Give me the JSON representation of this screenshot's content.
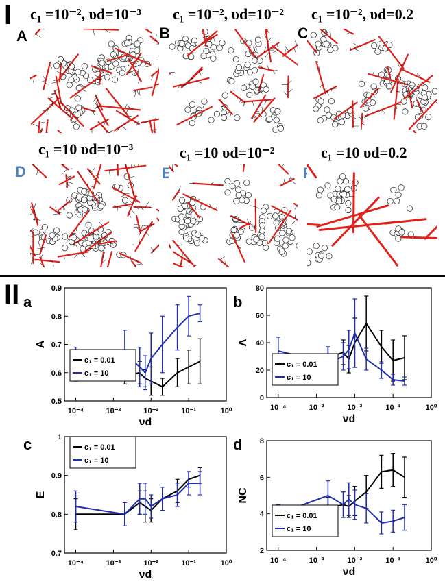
{
  "section_I": {
    "label": "I",
    "panels": [
      {
        "letter": "A",
        "header": "c₁ =10⁻², υd=10⁻³",
        "letter_color": "#000000"
      },
      {
        "letter": "B",
        "header": "c₁ =10⁻², υd=10⁻²",
        "letter_color": "#000000"
      },
      {
        "letter": "C",
        "header": "c₁ =10⁻², υd=0.2",
        "letter_color": "#000000"
      },
      {
        "letter": "D",
        "header": "c₁ =10 υd=10⁻³",
        "letter_color": "#4F81BD"
      },
      {
        "letter": "E",
        "header": "c₁ =10 υd=10⁻²",
        "letter_color": "#4F81BD"
      },
      {
        "letter": "F",
        "header": "c₁ =10 υd=0.2",
        "letter_color": "#4F81BD"
      }
    ]
  },
  "section_II": {
    "label": "II"
  },
  "colors": {
    "black_series": "#000000",
    "blue_series": "#1f2fb0",
    "filament_red": "#e0201a"
  },
  "chart_data": [
    {
      "panel": "a",
      "type": "line",
      "xscale": "log",
      "xlim": [
        5e-05,
        1
      ],
      "xticks": [
        "10⁻⁴",
        "10⁻³",
        "10⁻²",
        "10⁻¹",
        "10⁰"
      ],
      "xlabel": "νd",
      "ylabel": "A",
      "ylim": [
        0.5,
        0.9
      ],
      "yticks": [
        "0.5",
        "0.6",
        "0.7",
        "0.8",
        "0.9"
      ],
      "legend": "bottom-left",
      "series": [
        {
          "name": "c₁ = 0.01",
          "color": "black",
          "x": [
            0.0001,
            0.002,
            0.005,
            0.007,
            0.01,
            0.02,
            0.05,
            0.1,
            0.2
          ],
          "y": [
            0.59,
            0.59,
            0.6,
            0.58,
            0.57,
            0.55,
            0.6,
            0.62,
            0.64
          ],
          "err": [
            0.02,
            0.03,
            0.04,
            0.03,
            0.05,
            0.03,
            0.05,
            0.06,
            0.08
          ]
        },
        {
          "name": "c₁ = 10",
          "color": "blue",
          "x": [
            0.0001,
            0.002,
            0.005,
            0.007,
            0.01,
            0.02,
            0.05,
            0.1,
            0.2
          ],
          "y": [
            0.64,
            0.67,
            0.62,
            0.6,
            0.65,
            0.7,
            0.76,
            0.8,
            0.81
          ],
          "err": [
            0.05,
            0.08,
            0.07,
            0.06,
            0.09,
            0.1,
            0.08,
            0.07,
            0.03
          ]
        }
      ]
    },
    {
      "panel": "b",
      "type": "line",
      "xscale": "log",
      "xlim": [
        5e-05,
        1
      ],
      "xticks": [
        "10⁻⁴",
        "10⁻³",
        "10⁻²",
        "10⁻¹",
        "10⁰"
      ],
      "xlabel": "νd",
      "ylabel": "Λ",
      "ylim": [
        0,
        80
      ],
      "yticks": [
        "0",
        "20",
        "40",
        "60",
        "80"
      ],
      "legend": "bottom-left",
      "series": [
        {
          "name": "c₁ = 0.01",
          "color": "black",
          "x": [
            0.0001,
            0.002,
            0.005,
            0.007,
            0.01,
            0.02,
            0.05,
            0.1,
            0.2
          ],
          "y": [
            25,
            29,
            33,
            28,
            40,
            54,
            37,
            27,
            29
          ],
          "err": [
            5,
            8,
            9,
            10,
            18,
            20,
            12,
            15,
            16
          ]
        },
        {
          "name": "c₁ = 10",
          "color": "blue",
          "x": [
            0.0001,
            0.002,
            0.005,
            0.007,
            0.01,
            0.02,
            0.05,
            0.1,
            0.2
          ],
          "y": [
            34,
            25,
            30,
            35,
            47,
            28,
            20,
            13,
            12
          ],
          "err": [
            10,
            12,
            10,
            14,
            25,
            8,
            6,
            4,
            3
          ]
        }
      ]
    },
    {
      "panel": "c",
      "type": "line",
      "xscale": "log",
      "xlim": [
        5e-05,
        1
      ],
      "xticks": [
        "10⁻⁴",
        "10⁻³",
        "10⁻²",
        "10⁻¹",
        "10⁰"
      ],
      "xlabel": "νd",
      "ylabel": "E",
      "ylim": [
        0.7,
        1
      ],
      "yticks": [
        "0.7",
        "0.8",
        "0.9",
        "1"
      ],
      "legend": "top-left",
      "series": [
        {
          "name": "c₁ = 0.01",
          "color": "black",
          "x": [
            0.0001,
            0.002,
            0.005,
            0.007,
            0.01,
            0.02,
            0.05,
            0.1,
            0.2
          ],
          "y": [
            0.8,
            0.8,
            0.83,
            0.82,
            0.81,
            0.84,
            0.86,
            0.89,
            0.9
          ],
          "err": [
            0.04,
            0.03,
            0.03,
            0.04,
            0.03,
            0.03,
            0.03,
            0.02,
            0.02
          ]
        },
        {
          "name": "c₁ = 10",
          "color": "blue",
          "x": [
            0.0001,
            0.002,
            0.005,
            0.007,
            0.01,
            0.02,
            0.05,
            0.1,
            0.2
          ],
          "y": [
            0.82,
            0.8,
            0.84,
            0.84,
            0.82,
            0.84,
            0.85,
            0.88,
            0.88
          ],
          "err": [
            0.04,
            0.03,
            0.04,
            0.04,
            0.03,
            0.03,
            0.03,
            0.03,
            0.03
          ]
        }
      ]
    },
    {
      "panel": "d",
      "type": "line",
      "xscale": "log",
      "xlim": [
        5e-05,
        1
      ],
      "xticks": [
        "10⁻⁴",
        "10⁻³",
        "10⁻²",
        "10⁻¹",
        "10⁰"
      ],
      "xlabel": "νd",
      "ylabel": "NC",
      "ylim": [
        2,
        8
      ],
      "yticks": [
        "2",
        "4",
        "6",
        "8"
      ],
      "legend": "bottom-left",
      "series": [
        {
          "name": "c₁ = 0.01",
          "color": "black",
          "x": [
            0.0001,
            0.002,
            0.005,
            0.007,
            0.01,
            0.02,
            0.05,
            0.1,
            0.2
          ],
          "y": [
            4.0,
            4.3,
            4.5,
            4.4,
            4.7,
            5.2,
            6.3,
            6.4,
            6.0
          ],
          "err": [
            0.3,
            0.6,
            0.7,
            0.6,
            0.8,
            0.9,
            0.9,
            0.9,
            1.1
          ]
        },
        {
          "name": "c₁ = 10",
          "color": "blue",
          "x": [
            0.0001,
            0.002,
            0.005,
            0.007,
            0.01,
            0.02,
            0.05,
            0.1,
            0.2
          ],
          "y": [
            4.0,
            5.0,
            4.5,
            4.8,
            4.5,
            4.3,
            3.5,
            3.6,
            3.8
          ],
          "err": [
            0.5,
            0.8,
            0.7,
            0.9,
            0.8,
            0.8,
            0.6,
            0.6,
            0.7
          ]
        }
      ]
    }
  ]
}
